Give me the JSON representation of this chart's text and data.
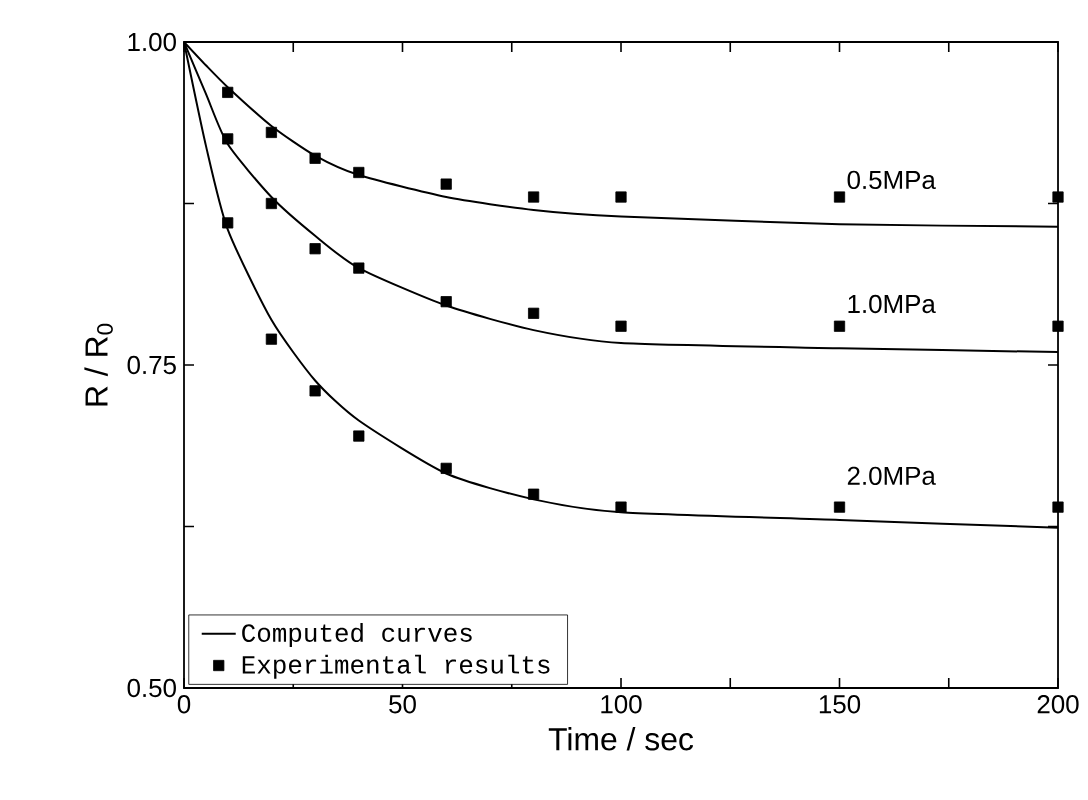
{
  "chart_data": {
    "type": "line",
    "xlabel": "Time / sec",
    "ylabel": "R / R$_{0}$",
    "xlim": [
      0,
      200
    ],
    "ylim": [
      0.5,
      1.0
    ],
    "xticks": [
      0,
      {
        "value": 25,
        "label": null
      },
      50,
      {
        "value": 75,
        "label": null
      },
      100,
      {
        "value": 125,
        "label": null
      },
      150,
      {
        "value": 175,
        "label": null
      },
      200
    ],
    "yticks": [
      "0.50",
      {
        "value": 0.625,
        "label": null
      },
      {
        "value": 0.75,
        "label": "0.75"
      },
      {
        "value": 0.875,
        "label": null
      },
      {
        "value": 1.0,
        "label": "1.00"
      }
    ],
    "legend": "bottom left",
    "grid": false,
    "series": [
      {
        "name": "Computed curves",
        "color": "#000000",
        "marker": "none",
        "line_style": "solid",
        "x": [
          0,
          5,
          10,
          20,
          30,
          40,
          60,
          80,
          100,
          150,
          200
        ],
        "values": [
          1.0,
          0.982,
          0.965,
          0.935,
          0.912,
          0.897,
          0.88,
          0.87,
          0.865,
          0.859,
          0.857
        ]
      },
      {
        "color": "#000000",
        "marker": "none",
        "line_style": "solid",
        "x": [
          0,
          5,
          10,
          20,
          30,
          40,
          60,
          80,
          100,
          150,
          200
        ],
        "values": [
          1.0,
          0.96,
          0.921,
          0.88,
          0.85,
          0.825,
          0.796,
          0.777,
          0.767,
          0.763,
          0.76
        ]
      },
      {
        "color": "#000000",
        "marker": "none",
        "line_style": "solid",
        "x": [
          0,
          5,
          10,
          20,
          30,
          40,
          60,
          80,
          100,
          150,
          200
        ],
        "values": [
          1.0,
          0.92,
          0.855,
          0.785,
          0.738,
          0.707,
          0.666,
          0.646,
          0.636,
          0.63,
          0.624
        ]
      },
      {
        "name": "Experimental results",
        "type": "scatter",
        "color": "#000000",
        "marker": "square",
        "x": [
          10,
          20,
          30,
          40,
          60,
          80,
          100,
          150,
          200
        ],
        "values": [
          0.961,
          0.93,
          0.91,
          0.899,
          0.89,
          0.88,
          0.88,
          0.88,
          0.88
        ]
      },
      {
        "type": "scatter",
        "color": "#000000",
        "marker": "square",
        "x": [
          10,
          20,
          30,
          40,
          60,
          80,
          100,
          150,
          200
        ],
        "values": [
          0.925,
          0.875,
          0.84,
          0.825,
          0.799,
          0.79,
          0.78,
          0.78,
          0.78
        ]
      },
      {
        "type": "scatter",
        "color": "#000000",
        "marker": "square",
        "x": [
          10,
          20,
          30,
          40,
          60,
          80,
          100,
          150,
          200
        ],
        "values": [
          0.86,
          0.77,
          0.73,
          0.695,
          0.67,
          0.65,
          0.64,
          0.64,
          0.64
        ]
      }
    ],
    "annotations": [
      "0.5MPa",
      "1.0MPa",
      "2.0MPa"
    ]
  }
}
